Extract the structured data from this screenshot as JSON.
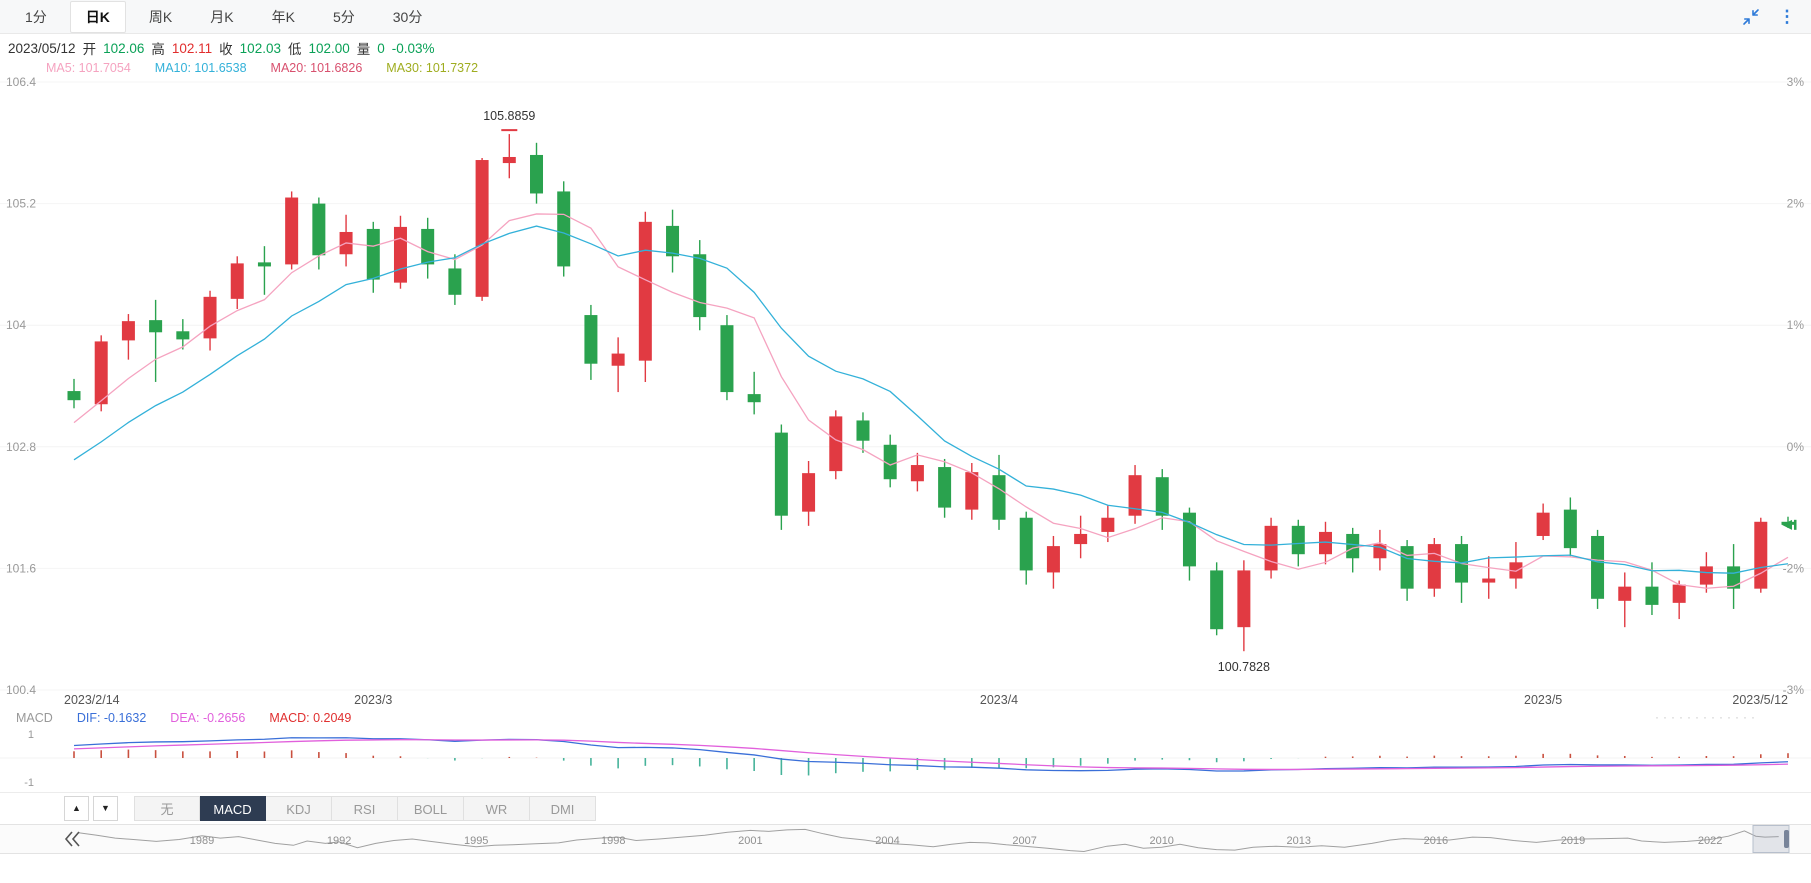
{
  "header": {
    "tabs": [
      {
        "label": "1分",
        "active": false
      },
      {
        "label": "日K",
        "active": true
      },
      {
        "label": "周K",
        "active": false
      },
      {
        "label": "月K",
        "active": false
      },
      {
        "label": "年K",
        "active": false
      },
      {
        "label": "5分",
        "active": false
      },
      {
        "label": "30分",
        "active": false
      }
    ],
    "more_glyph": "⋮"
  },
  "info_bar": {
    "date": "2023/05/12",
    "items": [
      {
        "label": "开",
        "value": "102.06",
        "trend": "down"
      },
      {
        "label": "高",
        "value": "102.11",
        "trend": "up"
      },
      {
        "label": "收",
        "value": "102.03",
        "trend": "down"
      },
      {
        "label": "低",
        "value": "102.00",
        "trend": "down"
      },
      {
        "label": "量",
        "value": "0",
        "trend": "down"
      }
    ],
    "change": "-0.03%"
  },
  "ma_legend": [
    {
      "label": "MA5: 101.7054",
      "color_key": "ma5"
    },
    {
      "label": "MA10: 101.6538",
      "color_key": "ma10"
    },
    {
      "label": "MA20: 101.6826",
      "color_key": "ma20"
    },
    {
      "label": "MA30: 101.7372",
      "color_key": "ma30"
    }
  ],
  "macd_legend": {
    "title": "MACD",
    "dif": "DIF: -0.1632",
    "dea": "DEA: -0.2656",
    "macd": "MACD: 0.2049"
  },
  "indicator_bar": {
    "up_arrow": "▲",
    "down_arrow": "▼",
    "tabs": [
      {
        "label": "无",
        "active": false
      },
      {
        "label": "MACD",
        "active": true
      },
      {
        "label": "KDJ",
        "active": false
      },
      {
        "label": "RSI",
        "active": false
      },
      {
        "label": "BOLL",
        "active": false
      },
      {
        "label": "WR",
        "active": false
      },
      {
        "label": "DMI",
        "active": false
      }
    ]
  },
  "misc": {
    "drag_dots": "·············"
  },
  "colors": {
    "up": "#e13a42",
    "down": "#2aa24e",
    "text_up": "#e12e2e",
    "text_down": "#0aa157",
    "ma5": "#f5a3c0",
    "ma10": "#33b1d9",
    "ma20": "#d8506e",
    "ma30": "#9fad20",
    "dif": "#3a6fd8",
    "dea": "#e160dc",
    "macd_value": "#e03030",
    "macd_pos": "#c9503f",
    "macd_neg": "#46b39a",
    "accent": "#2f7bd9"
  },
  "chart_data": {
    "type": "candlestick",
    "price_axis": [
      {
        "label": "106.4",
        "value": 106.4
      },
      {
        "label": "105.2",
        "value": 105.2
      },
      {
        "label": "104",
        "value": 104.0
      },
      {
        "label": "102.8",
        "value": 102.8
      },
      {
        "label": "101.6",
        "value": 101.6
      },
      {
        "label": "100.4",
        "value": 100.4
      }
    ],
    "percent_axis": [
      "3%",
      "2%",
      "1%",
      "0%",
      "-2%",
      "-3%"
    ],
    "x_labels": [
      {
        "label": "2023/2/14",
        "index": 0,
        "anchor": "start"
      },
      {
        "label": "2023/3",
        "index": 11,
        "anchor": "middle"
      },
      {
        "label": "2023/4",
        "index": 34,
        "anchor": "middle"
      },
      {
        "label": "2023/5",
        "index": 54,
        "anchor": "middle"
      },
      {
        "label": "2023/5/12",
        "index": 63,
        "anchor": "end"
      }
    ],
    "high_annotation": {
      "index": 16,
      "value": "105.8859"
    },
    "low_annotation": {
      "index": 43,
      "value": "100.7828"
    },
    "ma_periods": [
      5,
      10,
      20,
      30
    ],
    "macd_axis": [
      "1",
      "-1"
    ],
    "candle_columns": [
      "date",
      "open",
      "high",
      "low",
      "close"
    ],
    "candles": [
      [
        "2023-02-14",
        103.35,
        103.47,
        103.18,
        103.26
      ],
      [
        "2023-02-15",
        103.22,
        103.9,
        103.15,
        103.84
      ],
      [
        "2023-02-16",
        103.85,
        104.11,
        103.66,
        104.04
      ],
      [
        "2023-02-17",
        104.05,
        104.25,
        103.44,
        103.93
      ],
      [
        "2023-02-20",
        103.94,
        104.06,
        103.76,
        103.86
      ],
      [
        "2023-02-21",
        103.87,
        104.34,
        103.75,
        104.28
      ],
      [
        "2023-02-22",
        104.26,
        104.68,
        104.16,
        104.61
      ],
      [
        "2023-02-23",
        104.62,
        104.78,
        104.3,
        104.58
      ],
      [
        "2023-02-24",
        104.6,
        105.32,
        104.55,
        105.26
      ],
      [
        "2023-02-27",
        105.2,
        105.26,
        104.55,
        104.69
      ],
      [
        "2023-02-28",
        104.7,
        105.09,
        104.58,
        104.92
      ],
      [
        "2023-03-01",
        104.95,
        105.02,
        104.32,
        104.45
      ],
      [
        "2023-03-02",
        104.42,
        105.08,
        104.36,
        104.97
      ],
      [
        "2023-03-03",
        104.95,
        105.06,
        104.46,
        104.6
      ],
      [
        "2023-03-06",
        104.56,
        104.7,
        104.2,
        104.3
      ],
      [
        "2023-03-07",
        104.28,
        105.65,
        104.24,
        105.63
      ],
      [
        "2023-03-08",
        105.6,
        105.8859,
        105.45,
        105.66
      ],
      [
        "2023-03-09",
        105.68,
        105.8,
        105.2,
        105.3
      ],
      [
        "2023-03-10",
        105.32,
        105.42,
        104.48,
        104.58
      ],
      [
        "2023-03-13",
        104.1,
        104.2,
        103.46,
        103.62
      ],
      [
        "2023-03-14",
        103.6,
        103.88,
        103.34,
        103.72
      ],
      [
        "2023-03-15",
        103.65,
        105.12,
        103.44,
        105.02
      ],
      [
        "2023-03-16",
        104.98,
        105.14,
        104.52,
        104.68
      ],
      [
        "2023-03-17",
        104.7,
        104.84,
        103.95,
        104.08
      ],
      [
        "2023-03-20",
        104.0,
        104.1,
        103.26,
        103.34
      ],
      [
        "2023-03-21",
        103.32,
        103.54,
        103.12,
        103.24
      ],
      [
        "2023-03-22",
        102.94,
        103.02,
        101.98,
        102.12
      ],
      [
        "2023-03-23",
        102.16,
        102.66,
        102.02,
        102.54
      ],
      [
        "2023-03-24",
        102.56,
        103.16,
        102.48,
        103.1
      ],
      [
        "2023-03-27",
        103.06,
        103.14,
        102.74,
        102.86
      ],
      [
        "2023-03-28",
        102.82,
        102.92,
        102.4,
        102.48
      ],
      [
        "2023-03-29",
        102.46,
        102.74,
        102.36,
        102.62
      ],
      [
        "2023-03-30",
        102.6,
        102.68,
        102.1,
        102.2
      ],
      [
        "2023-03-31",
        102.18,
        102.64,
        102.08,
        102.55
      ],
      [
        "2023-04-03",
        102.52,
        102.72,
        101.98,
        102.08
      ],
      [
        "2023-04-04",
        102.1,
        102.16,
        101.44,
        101.58
      ],
      [
        "2023-04-05",
        101.56,
        101.92,
        101.4,
        101.82
      ],
      [
        "2023-04-06",
        101.84,
        102.12,
        101.7,
        101.94
      ],
      [
        "2023-04-07",
        101.96,
        102.22,
        101.86,
        102.1
      ],
      [
        "2023-04-10",
        102.12,
        102.62,
        102.04,
        102.52
      ],
      [
        "2023-04-11",
        102.5,
        102.58,
        101.98,
        102.12
      ],
      [
        "2023-04-12",
        102.15,
        102.2,
        101.48,
        101.62
      ],
      [
        "2023-04-13",
        101.58,
        101.66,
        100.94,
        101.0
      ],
      [
        "2023-04-14",
        101.02,
        101.68,
        100.7828,
        101.58
      ],
      [
        "2023-04-17",
        101.58,
        102.1,
        101.5,
        102.02
      ],
      [
        "2023-04-18",
        102.02,
        102.08,
        101.62,
        101.74
      ],
      [
        "2023-04-19",
        101.74,
        102.06,
        101.64,
        101.96
      ],
      [
        "2023-04-20",
        101.94,
        102.0,
        101.56,
        101.7
      ],
      [
        "2023-04-21",
        101.7,
        101.98,
        101.58,
        101.84
      ],
      [
        "2023-04-24",
        101.82,
        101.88,
        101.28,
        101.4
      ],
      [
        "2023-04-25",
        101.4,
        101.9,
        101.32,
        101.84
      ],
      [
        "2023-04-26",
        101.84,
        101.92,
        101.26,
        101.46
      ],
      [
        "2023-04-27",
        101.46,
        101.72,
        101.3,
        101.5
      ],
      [
        "2023-04-28",
        101.5,
        101.86,
        101.4,
        101.66
      ],
      [
        "2023-05-01",
        101.92,
        102.24,
        101.88,
        102.15
      ],
      [
        "2023-05-02",
        102.18,
        102.3,
        101.72,
        101.8
      ],
      [
        "2023-05-03",
        101.92,
        101.98,
        101.2,
        101.3
      ],
      [
        "2023-05-04",
        101.28,
        101.56,
        101.02,
        101.42
      ],
      [
        "2023-05-05",
        101.42,
        101.66,
        101.14,
        101.24
      ],
      [
        "2023-05-08",
        101.26,
        101.48,
        101.1,
        101.44
      ],
      [
        "2023-05-09",
        101.44,
        101.76,
        101.36,
        101.62
      ],
      [
        "2023-05-10",
        101.62,
        101.84,
        101.2,
        101.4
      ],
      [
        "2023-05-11",
        101.4,
        102.1,
        101.36,
        102.06
      ],
      [
        "2023-05-12",
        102.06,
        102.11,
        102.0,
        102.03
      ]
    ],
    "navigator": {
      "years": [
        "1989",
        "1992",
        "1995",
        "1998",
        "2001",
        "2004",
        "2007",
        "2010",
        "2013",
        "2016",
        "2019",
        "2022"
      ],
      "series": [
        [
          1986.3,
          110
        ],
        [
          1986.7,
          105
        ],
        [
          1987.1,
          99
        ],
        [
          1987.5,
          96
        ],
        [
          1988,
          92
        ],
        [
          1988.5,
          96
        ],
        [
          1989,
          104
        ],
        [
          1989.4,
          99
        ],
        [
          1989.8,
          102
        ],
        [
          1990.2,
          95
        ],
        [
          1990.6,
          88
        ],
        [
          1991,
          84
        ],
        [
          1991.3,
          93
        ],
        [
          1991.7,
          88
        ],
        [
          1992,
          91
        ],
        [
          1992.4,
          79
        ],
        [
          1992.8,
          88
        ],
        [
          1993.2,
          94
        ],
        [
          1993.6,
          97
        ],
        [
          1994,
          92
        ],
        [
          1994.5,
          86
        ],
        [
          1995,
          81
        ],
        [
          1995.4,
          84
        ],
        [
          1995.8,
          85
        ],
        [
          1996.3,
          87
        ],
        [
          1996.8,
          89
        ],
        [
          1997.2,
          95
        ],
        [
          1997.7,
          99
        ],
        [
          1998.1,
          101
        ],
        [
          1998.5,
          94
        ],
        [
          1999,
          97
        ],
        [
          1999.5,
          101
        ],
        [
          2000,
          105
        ],
        [
          2000.5,
          111
        ],
        [
          2001,
          115
        ],
        [
          2001.4,
          113
        ],
        [
          2001.8,
          116
        ],
        [
          2002.2,
          117
        ],
        [
          2002.6,
          108
        ],
        [
          2003,
          100
        ],
        [
          2003.5,
          95
        ],
        [
          2004,
          88
        ],
        [
          2004.5,
          85
        ],
        [
          2005,
          81
        ],
        [
          2005.4,
          86
        ],
        [
          2005.8,
          90
        ],
        [
          2006.2,
          89
        ],
        [
          2006.6,
          85
        ],
        [
          2007,
          82
        ],
        [
          2007.5,
          78
        ],
        [
          2008,
          73
        ],
        [
          2008.3,
          71
        ],
        [
          2008.8,
          82
        ],
        [
          2009.2,
          86
        ],
        [
          2009.6,
          78
        ],
        [
          2010,
          80
        ],
        [
          2010.4,
          86
        ],
        [
          2010.8,
          79
        ],
        [
          2011.2,
          75
        ],
        [
          2011.6,
          74
        ],
        [
          2012,
          80
        ],
        [
          2012.5,
          82
        ],
        [
          2013,
          80
        ],
        [
          2013.5,
          83
        ],
        [
          2014,
          80
        ],
        [
          2014.6,
          88
        ],
        [
          2015,
          95
        ],
        [
          2015.3,
          98
        ],
        [
          2015.8,
          96
        ],
        [
          2016.3,
          95
        ],
        [
          2016.8,
          101
        ],
        [
          2017.2,
          100
        ],
        [
          2017.7,
          94
        ],
        [
          2018.2,
          90
        ],
        [
          2018.7,
          95
        ],
        [
          2019.2,
          97
        ],
        [
          2019.7,
          98
        ],
        [
          2020.2,
          99
        ],
        [
          2020.5,
          93
        ],
        [
          2021,
          90
        ],
        [
          2021.5,
          92
        ],
        [
          2022,
          96
        ],
        [
          2022.4,
          103
        ],
        [
          2022.75,
          114
        ],
        [
          2023,
          103
        ],
        [
          2023.2,
          101
        ],
        [
          2023.5,
          102
        ]
      ]
    }
  }
}
